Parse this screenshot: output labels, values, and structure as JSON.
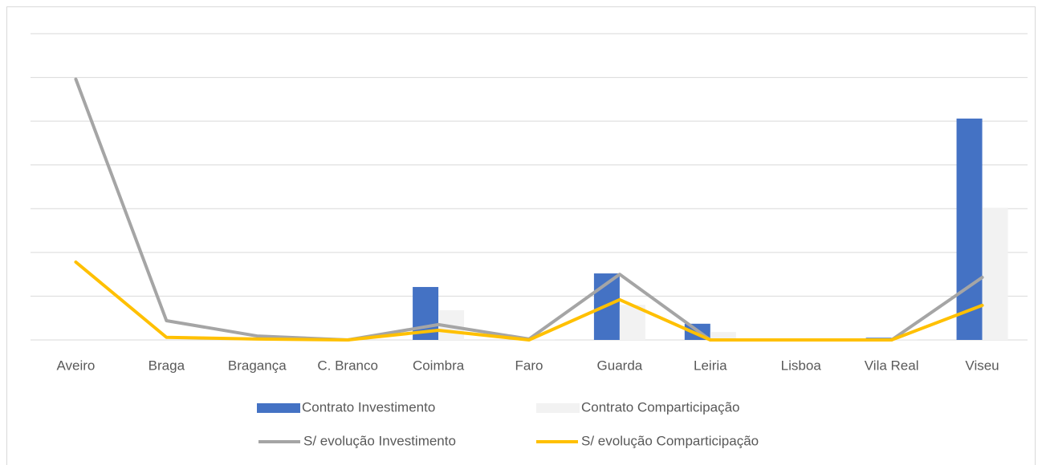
{
  "chart_data": {
    "type": "bar-line",
    "categories": [
      "Aveiro",
      "Braga",
      "Bragança",
      "C. Branco",
      "Coimbra",
      "Faro",
      "Guarda",
      "Leiria",
      "Lisboa",
      "Vila Real",
      "Viseu"
    ],
    "series": [
      {
        "name": "Contrato Investimento",
        "type": "bar",
        "color": "#4472c4",
        "values": [
          0,
          0,
          0,
          0,
          1.21,
          0,
          1.52,
          0.37,
          0,
          0.05,
          5.06
        ]
      },
      {
        "name": "Contrato Comparticipação",
        "type": "bar",
        "color": "#f2f2f2",
        "values": [
          0,
          0,
          0,
          0,
          0.68,
          0.02,
          0.8,
          0.18,
          0,
          0.02,
          3.02
        ]
      },
      {
        "name": "S/ evolução Investimento",
        "type": "line",
        "color": "#a5a5a5",
        "values": [
          5.96,
          0.44,
          0.09,
          0,
          0.35,
          0.02,
          1.5,
          0,
          0,
          0,
          1.43
        ]
      },
      {
        "name": "S/ evolução Comparticipação",
        "type": "line",
        "color": "#ffc000",
        "values": [
          1.78,
          0.06,
          0.02,
          0,
          0.22,
          0,
          0.92,
          0,
          0,
          0,
          0.79
        ]
      }
    ],
    "ylim": [
      0,
      7
    ],
    "yticks": [
      0,
      1,
      2,
      3,
      4,
      5,
      6,
      7
    ],
    "grid": true,
    "legend": "bottom"
  }
}
